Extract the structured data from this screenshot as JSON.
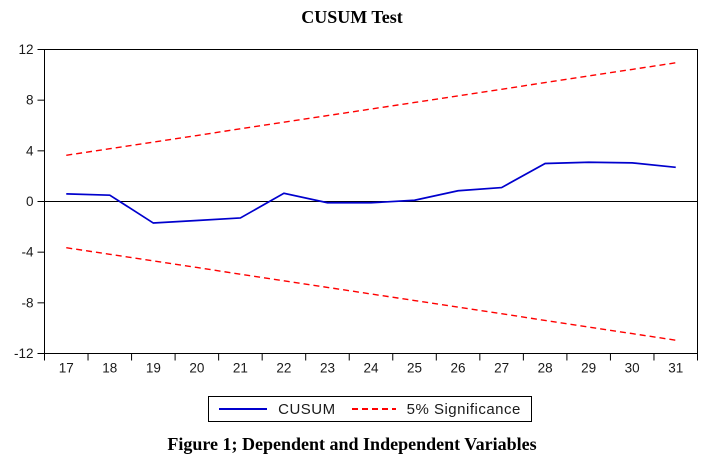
{
  "figure": {
    "title": "CUSUM Test",
    "caption": "Figure 1; Dependent and Independent Variables"
  },
  "chart_data": {
    "type": "line",
    "title": "CUSUM Test",
    "categories": [
      17,
      18,
      19,
      20,
      21,
      22,
      23,
      24,
      25,
      26,
      27,
      28,
      29,
      30,
      31
    ],
    "series": [
      {
        "name": "CUSUM",
        "style": "solid",
        "color": "#0000cd",
        "values": [
          0.6,
          0.5,
          -1.7,
          -1.5,
          -1.3,
          0.65,
          -0.1,
          -0.1,
          0.1,
          0.85,
          1.1,
          3.0,
          3.1,
          3.05,
          2.7
        ]
      },
      {
        "name": "5% Significance (upper)",
        "style": "dashed",
        "color": "#ff0000",
        "values": [
          3.65,
          4.17,
          4.69,
          5.21,
          5.74,
          6.26,
          6.78,
          7.3,
          7.82,
          8.34,
          8.86,
          9.39,
          9.91,
          10.43,
          10.95
        ]
      },
      {
        "name": "5% Significance (lower)",
        "style": "dashed",
        "color": "#ff0000",
        "values": [
          -3.65,
          -4.17,
          -4.69,
          -5.21,
          -5.74,
          -6.26,
          -6.78,
          -7.3,
          -7.82,
          -8.34,
          -8.86,
          -9.39,
          -9.91,
          -10.43,
          -10.95
        ]
      }
    ],
    "ylim": [
      -12,
      12
    ],
    "y_ticks": [
      12,
      8,
      4,
      0,
      -4,
      -8,
      -12
    ],
    "xlabel": "",
    "ylabel": "",
    "grid": false,
    "zero_line": true,
    "frame_color": "#000000",
    "text_color": "#1a1a1a",
    "legend": {
      "position": "bottom-center",
      "entries": [
        {
          "label": "CUSUM",
          "color": "#0000cd",
          "style": "solid"
        },
        {
          "label": "5% Significance",
          "color": "#ff0000",
          "style": "dashed"
        }
      ]
    }
  }
}
